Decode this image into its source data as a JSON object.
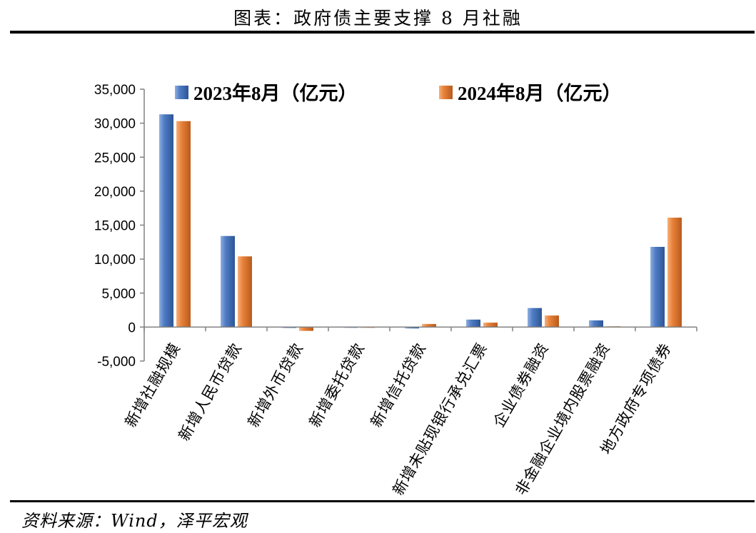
{
  "header": {
    "title": "图表：政府债主要支撑 8 月社融"
  },
  "footer": {
    "source": "资料来源：Wind，泽平宏观"
  },
  "chart_data": {
    "type": "bar",
    "title": "",
    "xlabel": "",
    "ylabel": "",
    "ylim": [
      -5000,
      35000
    ],
    "yticks": [
      -5000,
      0,
      5000,
      10000,
      15000,
      20000,
      25000,
      30000,
      35000
    ],
    "ytick_labels": [
      "-5,000",
      "0",
      "5,000",
      "10,000",
      "15,000",
      "20,000",
      "25,000",
      "30,000",
      "35,000"
    ],
    "grid": false,
    "legend_position": "top",
    "categories": [
      "新增社融规模",
      "新增人民币贷款",
      "新增外币贷款",
      "新增委托贷款",
      "新增信托贷款",
      "新增未贴现银行承兑汇票",
      "企业债券融资",
      "非金融企业境内股票融资",
      "地方政府专项债券"
    ],
    "series": [
      {
        "name": "2023年8月（亿元）",
        "color": "#4f7cc4",
        "values": [
          31300,
          13400,
          -130,
          -40,
          -200,
          1100,
          2800,
          980,
          11800
        ]
      },
      {
        "name": "2024年8月（亿元）",
        "color": "#e8823a",
        "values": [
          30300,
          10400,
          -560,
          -30,
          450,
          650,
          1700,
          110,
          16100
        ]
      }
    ]
  }
}
